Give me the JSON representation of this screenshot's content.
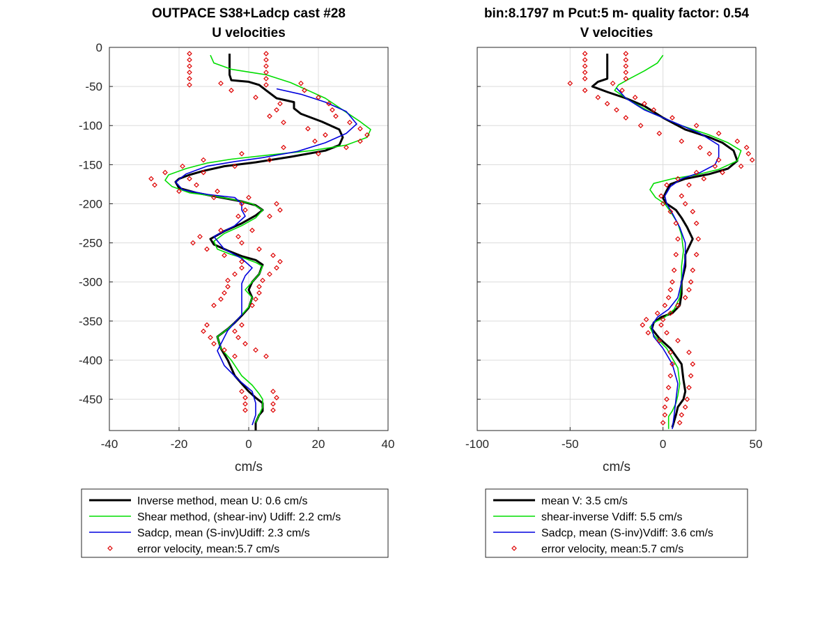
{
  "chart_data": [
    {
      "type": "line",
      "title": "OUTPACE S38+Ladcp cast #28",
      "subtitle": "U velocities",
      "xlabel": "cm/s",
      "ylabel": "",
      "xlim": [
        -40,
        40
      ],
      "ylim": [
        -490,
        0
      ],
      "xticks": [
        -40,
        -20,
        0,
        20,
        40
      ],
      "yticks": [
        0,
        -50,
        -100,
        -150,
        -200,
        -250,
        -300,
        -350,
        -400,
        -450
      ],
      "grid": true,
      "legend_position": "below",
      "series": [
        {
          "name": "Inverse method, mean U:  0.6 cm/s",
          "color": "#000000",
          "style": "thick-line",
          "x": [
            -5.5,
            -5.5,
            -5.5,
            -5,
            0,
            3,
            5,
            8,
            13,
            13,
            15,
            21,
            26,
            27,
            26,
            22,
            12,
            2,
            -7,
            -13,
            -17,
            -20,
            -21,
            -20,
            -15,
            -8,
            -2,
            2,
            4,
            2,
            -2,
            -7,
            -11,
            -10,
            -6,
            -2,
            2,
            4,
            3,
            1,
            0,
            1,
            0,
            -2,
            -4,
            -6,
            -9,
            -8,
            -6,
            -4,
            -2,
            0,
            2,
            4,
            4,
            3,
            2,
            2
          ],
          "y": [
            -8,
            -20,
            -35,
            -42,
            -44,
            -48,
            -55,
            -65,
            -70,
            -78,
            -85,
            -95,
            -105,
            -115,
            -125,
            -132,
            -140,
            -147,
            -152,
            -158,
            -163,
            -168,
            -172,
            -180,
            -186,
            -192,
            -197,
            -202,
            -208,
            -215,
            -225,
            -235,
            -245,
            -252,
            -260,
            -267,
            -272,
            -278,
            -290,
            -300,
            -310,
            -320,
            -333,
            -343,
            -352,
            -360,
            -370,
            -385,
            -400,
            -420,
            -430,
            -440,
            -448,
            -455,
            -465,
            -470,
            -480,
            -490
          ]
        },
        {
          "name": "Shear method, (shear-inv)  Udiff:  2.2 cm/s",
          "color": "#00dd00",
          "style": "line",
          "x": [
            -11,
            -10,
            -5,
            5,
            12,
            17,
            22,
            27,
            32,
            35,
            34,
            28,
            18,
            5,
            -5,
            -12,
            -18,
            -23,
            -24,
            -22,
            -17,
            -10,
            -4,
            1,
            4,
            2,
            -2,
            -7,
            -10,
            -9,
            -5,
            -1,
            2,
            4,
            3,
            1,
            -1,
            1,
            0,
            -2,
            -4,
            -6,
            -9,
            -8,
            -5,
            -2,
            1,
            3,
            4,
            4,
            3,
            2
          ],
          "y": [
            -10,
            -20,
            -28,
            -35,
            -45,
            -55,
            -65,
            -80,
            -95,
            -105,
            -115,
            -125,
            -132,
            -138,
            -143,
            -148,
            -155,
            -163,
            -170,
            -178,
            -186,
            -190,
            -195,
            -200,
            -208,
            -218,
            -228,
            -238,
            -248,
            -258,
            -265,
            -270,
            -275,
            -280,
            -290,
            -300,
            -310,
            -320,
            -332,
            -342,
            -352,
            -360,
            -370,
            -385,
            -400,
            -420,
            -432,
            -443,
            -450,
            -460,
            -470,
            -480
          ]
        },
        {
          "name": "Sadcp, mean (S-inv)Udiff: 2.3 cm/s",
          "color": "#0000dd",
          "style": "line",
          "x": [
            8,
            15,
            22,
            28,
            31,
            28,
            22,
            14,
            4,
            -4,
            -12,
            -18,
            -21,
            -19,
            -12,
            -4,
            -2,
            -2,
            -1,
            -4,
            -10,
            -7,
            -2,
            1,
            -1,
            -2,
            -2,
            -2,
            -4,
            -6,
            -9,
            -7,
            -3,
            1,
            2,
            2,
            1
          ],
          "y": [
            -53,
            -60,
            -70,
            -82,
            -98,
            -110,
            -122,
            -133,
            -141,
            -146,
            -152,
            -162,
            -172,
            -182,
            -188,
            -192,
            -200,
            -208,
            -216,
            -228,
            -242,
            -258,
            -270,
            -282,
            -292,
            -302,
            -322,
            -342,
            -352,
            -362,
            -388,
            -407,
            -425,
            -440,
            -455,
            -470,
            -483
          ]
        },
        {
          "name": "error velocity, mean:5.7 cm/s",
          "color": "#dd0000",
          "style": "markers-diamond-open",
          "x_low": [
            -17,
            -17,
            -17,
            -17,
            -17,
            -17,
            -8,
            -5,
            2,
            9,
            8,
            6,
            10,
            17,
            22,
            19,
            10,
            -2,
            -13,
            -19,
            -24,
            -28,
            -27,
            -20,
            -10,
            -2,
            -1,
            -3,
            -8,
            -14,
            -16,
            -12,
            -7,
            -2,
            -2,
            -4,
            -6,
            -6,
            -7,
            -8,
            -10,
            -12,
            -13,
            -11,
            -10,
            -7,
            -4,
            -2,
            -1,
            -1,
            -1
          ],
          "x_high": [
            5,
            5,
            5,
            5,
            5,
            5,
            15,
            16,
            20,
            23,
            24,
            25,
            29,
            32,
            34,
            32,
            28,
            20,
            6,
            -4,
            -13,
            -17,
            -15,
            -9,
            0,
            8,
            9,
            6,
            1,
            -3,
            -2,
            3,
            7,
            9,
            8,
            6,
            4,
            3,
            3,
            2,
            1,
            -2,
            -4,
            -3,
            -1,
            2,
            5,
            7,
            8,
            7,
            7
          ],
          "y": [
            -8,
            -16,
            -24,
            -32,
            -40,
            -48,
            -46,
            -55,
            -64,
            -72,
            -80,
            -88,
            -96,
            -104,
            -112,
            -120,
            -128,
            -136,
            -144,
            -152,
            -160,
            -168,
            -176,
            -184,
            -192,
            -200,
            -208,
            -216,
            -234,
            -242,
            -250,
            -258,
            -266,
            -274,
            -282,
            -290,
            -298,
            -306,
            -314,
            -322,
            -330,
            -355,
            -363,
            -371,
            -379,
            -387,
            -395,
            -440,
            -448,
            -456,
            -464
          ]
        }
      ]
    },
    {
      "type": "line",
      "title": "bin:8.1797 m  Pcut:5 m- quality factor:  0.54",
      "subtitle": "V velocities",
      "xlabel": "cm/s",
      "ylabel": "",
      "xlim": [
        -100,
        50
      ],
      "ylim": [
        -490,
        0
      ],
      "xticks": [
        -100,
        -50,
        0,
        50
      ],
      "yticks": [
        0,
        -50,
        -100,
        -150,
        -200,
        -250,
        -300,
        -350,
        -400,
        -450
      ],
      "grid": true,
      "legend_position": "below",
      "series": [
        {
          "name": "mean V:  3.5 cm/s",
          "color": "#000000",
          "style": "thick-line",
          "x": [
            -30,
            -30,
            -30,
            -35,
            -38,
            -30,
            -20,
            -10,
            0,
            12,
            25,
            32,
            38,
            40,
            35,
            25,
            12,
            4,
            2,
            0,
            2,
            7,
            10,
            13,
            16,
            14,
            12,
            12,
            10,
            10,
            9,
            5,
            -1,
            -5,
            -6,
            -2,
            4,
            10,
            11,
            12,
            11,
            8,
            7,
            6,
            5
          ],
          "y": [
            -8,
            -25,
            -40,
            -44,
            -50,
            -57,
            -65,
            -75,
            -90,
            -105,
            -115,
            -122,
            -132,
            -145,
            -155,
            -162,
            -168,
            -175,
            -183,
            -193,
            -200,
            -208,
            -218,
            -230,
            -245,
            -255,
            -265,
            -280,
            -300,
            -315,
            -330,
            -340,
            -345,
            -352,
            -360,
            -372,
            -385,
            -405,
            -425,
            -440,
            -450,
            -460,
            -470,
            -478,
            -486
          ]
        },
        {
          "name": "shear-inverse Vdiff:  5.5 cm/s",
          "color": "#00dd00",
          "style": "line",
          "x": [
            0,
            -3,
            -10,
            -18,
            -24,
            -26,
            -18,
            -5,
            10,
            25,
            35,
            42,
            40,
            30,
            18,
            5,
            -5,
            -7,
            -4,
            1,
            4,
            8,
            10,
            11,
            10,
            10,
            9,
            6,
            1,
            -5,
            -7,
            -5,
            2,
            8,
            9,
            8,
            7,
            5,
            3,
            3,
            3
          ],
          "y": [
            -10,
            -20,
            -30,
            -40,
            -48,
            -55,
            -68,
            -85,
            -100,
            -112,
            -122,
            -132,
            -145,
            -156,
            -163,
            -168,
            -174,
            -182,
            -192,
            -200,
            -210,
            -225,
            -240,
            -260,
            -280,
            -300,
            -320,
            -335,
            -345,
            -352,
            -358,
            -368,
            -385,
            -410,
            -430,
            -445,
            -455,
            -465,
            -472,
            -480,
            -488
          ]
        },
        {
          "name": "Sadcp, mean (S-inv)Vdiff: 3.6 cm/s",
          "color": "#0000dd",
          "style": "line",
          "x": [
            -25,
            -20,
            -10,
            5,
            20,
            30,
            30,
            28,
            20,
            10,
            4,
            1,
            2,
            5,
            9,
            12,
            12,
            10,
            8,
            3,
            -3,
            -6,
            -5,
            0,
            5,
            8,
            7,
            6,
            5
          ],
          "y": [
            -52,
            -65,
            -80,
            -95,
            -110,
            -125,
            -140,
            -150,
            -160,
            -168,
            -178,
            -190,
            -200,
            -212,
            -230,
            -250,
            -270,
            -300,
            -320,
            -335,
            -345,
            -355,
            -370,
            -385,
            -405,
            -430,
            -450,
            -470,
            -488
          ]
        },
        {
          "name": "error velocity, mean:5.7 cm/s",
          "color": "#dd0000",
          "style": "markers-diamond-open",
          "x_low": [
            -42,
            -42,
            -42,
            -42,
            -42,
            -50,
            -42,
            -35,
            -30,
            -25,
            -20,
            -12,
            -2,
            10,
            20,
            25,
            30,
            28,
            18,
            8,
            2,
            -1,
            0,
            4,
            7,
            8,
            7,
            6,
            5,
            4,
            3,
            1,
            -3,
            -9,
            -11,
            -8,
            -2,
            4,
            5,
            4,
            3,
            2,
            1,
            1,
            0
          ],
          "x_high": [
            -20,
            -20,
            -20,
            -20,
            -20,
            -27,
            -22,
            -15,
            -10,
            -5,
            5,
            18,
            30,
            40,
            45,
            46,
            48,
            42,
            32,
            22,
            14,
            10,
            12,
            16,
            18,
            19,
            18,
            16,
            15,
            14,
            12,
            8,
            4,
            0,
            -1,
            2,
            8,
            14,
            16,
            15,
            14,
            13,
            12,
            10,
            9
          ],
          "y": [
            -8,
            -16,
            -24,
            -32,
            -40,
            -46,
            -55,
            -64,
            -72,
            -80,
            -90,
            -100,
            -110,
            -120,
            -128,
            -136,
            -144,
            -152,
            -160,
            -168,
            -176,
            -190,
            -200,
            -210,
            -225,
            -245,
            -265,
            -285,
            -300,
            -310,
            -320,
            -330,
            -340,
            -348,
            -355,
            -365,
            -375,
            -390,
            -405,
            -420,
            -435,
            -450,
            -460,
            -470,
            -480
          ]
        }
      ]
    }
  ]
}
